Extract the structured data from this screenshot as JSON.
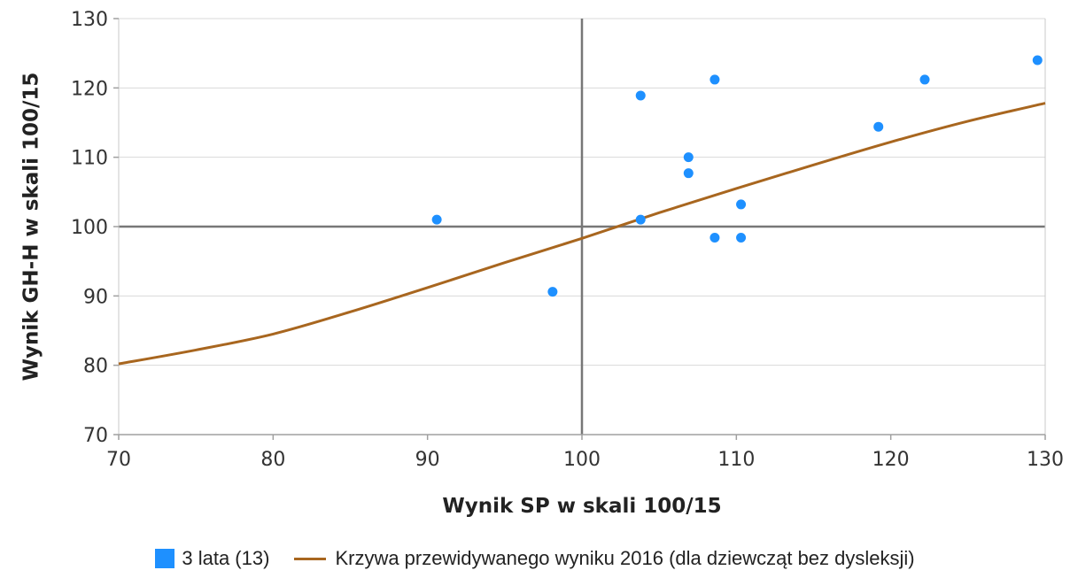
{
  "chart_data": {
    "type": "scatter",
    "xlabel": "Wynik SP w skali 100/15",
    "ylabel": "Wynik GH-H w skali 100/15",
    "xlim": [
      70,
      130
    ],
    "ylim": [
      70,
      130
    ],
    "xticks": [
      "70",
      "80",
      "90",
      "100",
      "110",
      "120",
      "130"
    ],
    "yticks": [
      "70",
      "80",
      "90",
      "100",
      "110",
      "120",
      "130"
    ],
    "grid": "horizontal",
    "reference_lines": {
      "x": 100,
      "y": 100
    },
    "legend_position": "bottom",
    "series": [
      {
        "name": "3 lata (13)",
        "type": "scatter",
        "color": "#1e90ff",
        "points": [
          [
            90.6,
            101.0
          ],
          [
            98.1,
            90.6
          ],
          [
            103.8,
            101.0
          ],
          [
            103.8,
            118.9
          ],
          [
            106.9,
            110.0
          ],
          [
            106.9,
            107.7
          ],
          [
            108.6,
            121.2
          ],
          [
            108.6,
            98.4
          ],
          [
            110.3,
            103.2
          ],
          [
            110.3,
            98.4
          ],
          [
            119.2,
            114.4
          ],
          [
            122.2,
            121.2
          ],
          [
            129.5,
            124.0
          ]
        ]
      },
      {
        "name": "Krzywa przewidywanego wyniku 2016 (dla dziewcząt bez dysleksji)",
        "type": "line",
        "color": "#a8661f",
        "points": [
          [
            70,
            80.2
          ],
          [
            75,
            82.2
          ],
          [
            80,
            84.5
          ],
          [
            85,
            87.7
          ],
          [
            90,
            91.2
          ],
          [
            95,
            94.8
          ],
          [
            100,
            98.3
          ],
          [
            105,
            102.0
          ],
          [
            110,
            105.5
          ],
          [
            115,
            108.9
          ],
          [
            120,
            112.2
          ],
          [
            125,
            115.2
          ],
          [
            130,
            117.8
          ]
        ]
      }
    ]
  }
}
